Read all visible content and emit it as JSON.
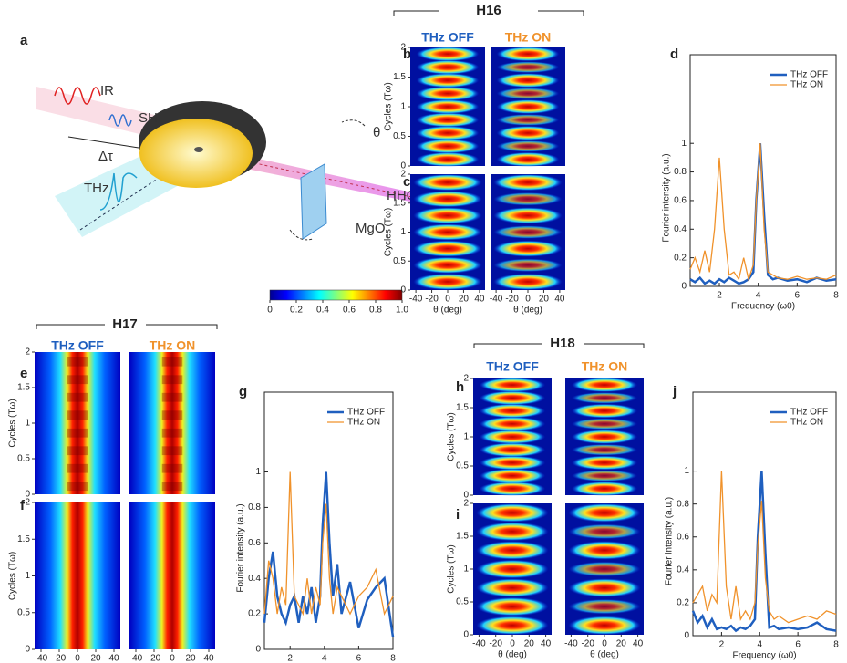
{
  "panel_labels": [
    "a",
    "b",
    "c",
    "d",
    "e",
    "f",
    "g",
    "h",
    "i",
    "j"
  ],
  "schematic": {
    "labels": [
      "IR",
      "SH",
      "Δτ",
      "THz",
      "θ",
      "HHG",
      "MgO"
    ]
  },
  "colorbar": {
    "clim": [
      0,
      1
    ],
    "ticks": [
      0,
      0.2,
      0.4,
      0.6,
      0.8,
      {
        "value": 1,
        "label": "1.0"
      }
    ]
  },
  "groups": [
    {
      "title": "H16",
      "off": "THz OFF",
      "on": "THz ON"
    },
    {
      "title": "H17",
      "off": "THz OFF",
      "on": "THz ON"
    },
    {
      "title": "H18",
      "off": "THz OFF",
      "on": "THz ON"
    }
  ],
  "heatmap_axes": {
    "ylabel": "Cycles (Tω)",
    "xlabel": "θ (deg)",
    "xlim": [
      -47,
      47
    ],
    "ylim": [
      0,
      2
    ],
    "xticks": [
      -40,
      -20,
      0,
      20,
      40
    ],
    "yticks": [
      0,
      0.5,
      1,
      1.5,
      2
    ]
  },
  "chart_data": [
    {
      "type": "line",
      "xlabel": "Frequency (ω0)",
      "ylabel": "Fourier intensity (a.u.)",
      "legend": "upper right",
      "x": [
        0.5,
        0.75,
        1,
        1.25,
        1.5,
        1.75,
        2,
        2.25,
        2.5,
        2.75,
        3,
        3.25,
        3.5,
        3.75,
        3.9,
        4.1,
        4.3,
        4.5,
        4.75,
        5,
        5.5,
        6,
        6.5,
        7,
        7.5,
        8
      ],
      "series": [
        {
          "name": "THz OFF",
          "color": "#1f5fbf",
          "values": [
            0.05,
            0.03,
            0.06,
            0.02,
            0.04,
            0.02,
            0.05,
            0.03,
            0.06,
            0.04,
            0.02,
            0.03,
            0.05,
            0.1,
            0.6,
            1.0,
            0.5,
            0.08,
            0.05,
            0.06,
            0.04,
            0.05,
            0.03,
            0.06,
            0.04,
            0.05
          ]
        },
        {
          "name": "THz ON",
          "color": "#f0922b",
          "values": [
            0.12,
            0.2,
            0.1,
            0.25,
            0.1,
            0.4,
            0.9,
            0.4,
            0.08,
            0.1,
            0.05,
            0.2,
            0.05,
            0.15,
            0.6,
            1.0,
            0.4,
            0.1,
            0.08,
            0.06,
            0.05,
            0.07,
            0.05,
            0.06,
            0.05,
            0.08
          ]
        }
      ],
      "xlim": [
        0.5,
        8
      ],
      "ylim": [
        0,
        1.62
      ],
      "xticks": [
        2,
        4,
        6,
        8
      ],
      "yticks": [
        0,
        0.2,
        0.4,
        0.6,
        0.8,
        1
      ]
    },
    {
      "type": "line",
      "xlabel": "Frequency (ω0)",
      "ylabel": "Fourier intensity (a.u.)",
      "legend": "upper right",
      "x": [
        0.5,
        0.75,
        1,
        1.25,
        1.5,
        1.75,
        2,
        2.25,
        2.5,
        2.75,
        3,
        3.25,
        3.5,
        3.75,
        3.9,
        4.1,
        4.3,
        4.5,
        4.75,
        5,
        5.5,
        6,
        6.5,
        7,
        7.5,
        8
      ],
      "series": [
        {
          "name": "THz OFF",
          "color": "#1f5fbf",
          "values": [
            0.15,
            0.4,
            0.55,
            0.3,
            0.2,
            0.15,
            0.25,
            0.3,
            0.15,
            0.3,
            0.2,
            0.35,
            0.15,
            0.3,
            0.7,
            1.0,
            0.6,
            0.3,
            0.48,
            0.2,
            0.38,
            0.12,
            0.28,
            0.35,
            0.4,
            0.07
          ]
        },
        {
          "name": "THz ON",
          "color": "#f0922b",
          "values": [
            0.2,
            0.5,
            0.4,
            0.2,
            0.35,
            0.25,
            1.0,
            0.3,
            0.25,
            0.2,
            0.4,
            0.2,
            0.35,
            0.25,
            0.6,
            0.82,
            0.4,
            0.2,
            0.35,
            0.3,
            0.2,
            0.3,
            0.35,
            0.45,
            0.2,
            0.3
          ]
        }
      ],
      "xlim": [
        0.5,
        8
      ],
      "ylim": [
        0,
        1.45
      ],
      "xticks": [
        2,
        4,
        6,
        8
      ],
      "yticks": [
        0,
        0.2,
        0.4,
        0.6,
        0.8,
        1
      ]
    },
    {
      "type": "line",
      "xlabel": "Frequency (ω0)",
      "ylabel": "Fourier intensity (a.u.)",
      "legend": "upper right",
      "x": [
        0.5,
        0.75,
        1,
        1.25,
        1.5,
        1.75,
        2,
        2.25,
        2.5,
        2.75,
        3,
        3.25,
        3.5,
        3.75,
        3.9,
        4.1,
        4.3,
        4.5,
        4.75,
        5,
        5.5,
        6,
        6.5,
        7,
        7.5,
        8
      ],
      "series": [
        {
          "name": "THz OFF",
          "color": "#1f5fbf",
          "values": [
            0.15,
            0.08,
            0.12,
            0.05,
            0.1,
            0.04,
            0.05,
            0.04,
            0.06,
            0.03,
            0.05,
            0.04,
            0.06,
            0.1,
            0.6,
            1.0,
            0.5,
            0.05,
            0.06,
            0.04,
            0.05,
            0.04,
            0.05,
            0.08,
            0.04,
            0.03
          ]
        },
        {
          "name": "THz ON",
          "color": "#f0922b",
          "values": [
            0.2,
            0.25,
            0.3,
            0.15,
            0.25,
            0.2,
            1.0,
            0.3,
            0.1,
            0.3,
            0.1,
            0.15,
            0.1,
            0.2,
            0.55,
            0.82,
            0.35,
            0.15,
            0.1,
            0.12,
            0.08,
            0.1,
            0.12,
            0.1,
            0.15,
            0.13
          ]
        }
      ],
      "xlim": [
        0.5,
        8
      ],
      "ylim": [
        0,
        1.48
      ],
      "xticks": [
        2,
        4,
        6,
        8
      ],
      "yticks": [
        0,
        0.2,
        0.4,
        0.6,
        0.8,
        1
      ]
    }
  ]
}
